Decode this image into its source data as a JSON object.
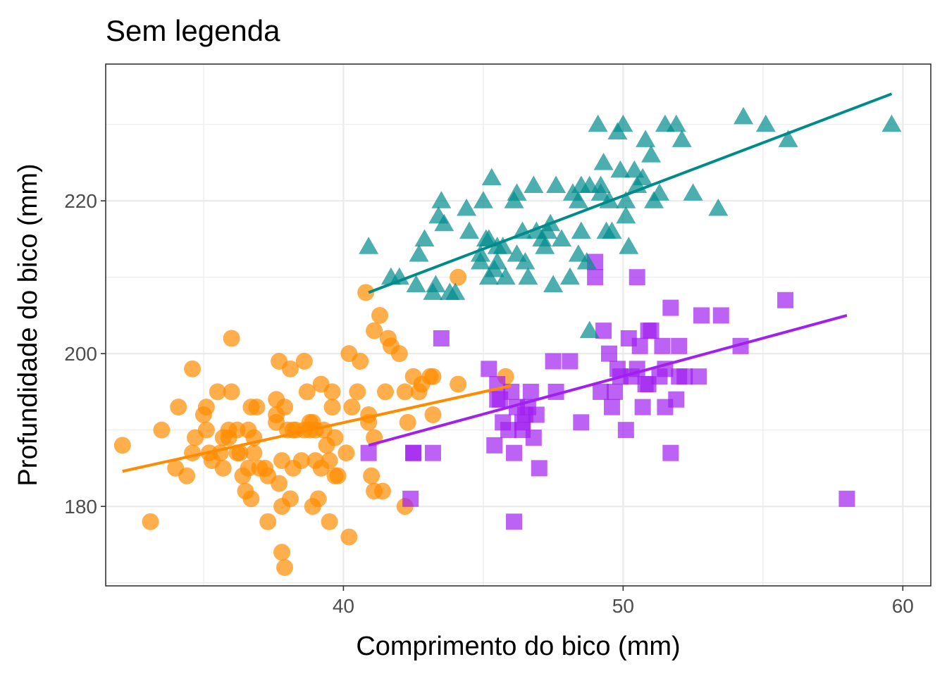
{
  "chart_data": {
    "type": "scatter",
    "title": "Sem legenda",
    "xlabel": "Comprimento do bico (mm)",
    "ylabel": "Profundidade do bico (mm)",
    "xlim": [
      31.5,
      61.0
    ],
    "ylim": [
      169.6,
      237.9
    ],
    "x_ticks": [
      40,
      50,
      60
    ],
    "y_ticks": [
      180,
      200,
      220
    ],
    "grid": true,
    "legend": "none",
    "colors": {
      "orange": "#FF8C00",
      "purple": "#A020F0",
      "teal": "#008B8B",
      "grid": "#EBEBEB",
      "panel_border": "#333333"
    },
    "series": [
      {
        "marker": "circle",
        "color": "#FF8C00",
        "points": [
          [
            32.1,
            188
          ],
          [
            33.1,
            178
          ],
          [
            33.5,
            190
          ],
          [
            34.0,
            185
          ],
          [
            34.1,
            193
          ],
          [
            34.4,
            184
          ],
          [
            34.6,
            187
          ],
          [
            34.6,
            198
          ],
          [
            34.7,
            189
          ],
          [
            35.0,
            192
          ],
          [
            35.1,
            193
          ],
          [
            35.1,
            190
          ],
          [
            35.2,
            187
          ],
          [
            35.3,
            186
          ],
          [
            35.5,
            195
          ],
          [
            35.6,
            187
          ],
          [
            35.7,
            189
          ],
          [
            35.7,
            185
          ],
          [
            35.9,
            190
          ],
          [
            35.9,
            189
          ],
          [
            36.0,
            195
          ],
          [
            36.2,
            187
          ],
          [
            36.0,
            202
          ],
          [
            36.2,
            190
          ],
          [
            36.3,
            187
          ],
          [
            36.4,
            184
          ],
          [
            36.5,
            182
          ],
          [
            36.6,
            185
          ],
          [
            36.6,
            190
          ],
          [
            36.7,
            193
          ],
          [
            36.7,
            181
          ],
          [
            36.8,
            187
          ],
          [
            36.9,
            193
          ],
          [
            37.0,
            185
          ],
          [
            37.2,
            185
          ],
          [
            37.3,
            184
          ],
          [
            37.3,
            178
          ],
          [
            37.6,
            194
          ],
          [
            37.6,
            192
          ],
          [
            37.6,
            191
          ],
          [
            37.7,
            183
          ],
          [
            37.7,
            199
          ],
          [
            37.8,
            180
          ],
          [
            37.8,
            174
          ],
          [
            37.8,
            186
          ],
          [
            37.9,
            193
          ],
          [
            37.9,
            172
          ],
          [
            38.0,
            190
          ],
          [
            38.1,
            198
          ],
          [
            38.1,
            181
          ],
          [
            38.2,
            185
          ],
          [
            38.3,
            190
          ],
          [
            38.5,
            186
          ],
          [
            38.6,
            190
          ],
          [
            38.6,
            199
          ],
          [
            38.7,
            195
          ],
          [
            38.8,
            191
          ],
          [
            38.8,
            190
          ],
          [
            38.9,
            180
          ],
          [
            39.0,
            190
          ],
          [
            39.1,
            181
          ],
          [
            39.2,
            185
          ],
          [
            39.2,
            196
          ],
          [
            39.3,
            190
          ],
          [
            39.5,
            178
          ],
          [
            39.5,
            186
          ],
          [
            39.6,
            193
          ],
          [
            39.6,
            195
          ],
          [
            39.7,
            184
          ],
          [
            39.8,
            184
          ],
          [
            40.2,
            176
          ],
          [
            40.2,
            200
          ],
          [
            40.3,
            193
          ],
          [
            40.5,
            195
          ],
          [
            40.6,
            199
          ],
          [
            40.8,
            208
          ],
          [
            41.0,
            184
          ],
          [
            41.1,
            203
          ],
          [
            41.1,
            182
          ],
          [
            41.3,
            205
          ],
          [
            41.4,
            182
          ],
          [
            41.5,
            195
          ],
          [
            41.6,
            202
          ],
          [
            41.7,
            201
          ],
          [
            42.0,
            200
          ],
          [
            42.2,
            195
          ],
          [
            42.2,
            180
          ],
          [
            42.3,
            191
          ],
          [
            42.5,
            197
          ],
          [
            42.7,
            195
          ],
          [
            42.8,
            196
          ],
          [
            43.1,
            197
          ],
          [
            43.2,
            197
          ],
          [
            43.2,
            192
          ],
          [
            44.1,
            196
          ],
          [
            44.1,
            210
          ],
          [
            45.8,
            197
          ],
          [
            39.4,
            188
          ],
          [
            38.2,
            190
          ],
          [
            36.8,
            189
          ],
          [
            40.9,
            191
          ],
          [
            40.1,
            187
          ],
          [
            39.7,
            189
          ],
          [
            41.1,
            189
          ],
          [
            40.9,
            192
          ],
          [
            38.9,
            191
          ],
          [
            39.0,
            186
          ]
        ]
      },
      {
        "marker": "square",
        "color": "#A020F0",
        "points": [
          [
            40.9,
            187
          ],
          [
            42.4,
            181
          ],
          [
            42.5,
            187
          ],
          [
            42.5,
            187
          ],
          [
            43.2,
            187
          ],
          [
            43.5,
            202
          ],
          [
            45.2,
            198
          ],
          [
            45.4,
            188
          ],
          [
            45.5,
            196
          ],
          [
            45.6,
            194
          ],
          [
            45.7,
            191
          ],
          [
            45.9,
            190
          ],
          [
            46.0,
            195
          ],
          [
            46.1,
            178
          ],
          [
            46.1,
            187
          ],
          [
            46.2,
            193
          ],
          [
            46.4,
            190
          ],
          [
            46.5,
            192
          ],
          [
            46.6,
            193
          ],
          [
            46.7,
            195
          ],
          [
            46.8,
            189
          ],
          [
            46.9,
            192
          ],
          [
            47.0,
            185
          ],
          [
            47.5,
            199
          ],
          [
            47.6,
            195
          ],
          [
            48.1,
            199
          ],
          [
            48.5,
            191
          ],
          [
            49.0,
            210
          ],
          [
            49.2,
            195
          ],
          [
            49.3,
            203
          ],
          [
            49.5,
            200
          ],
          [
            49.6,
            193
          ],
          [
            49.7,
            195
          ],
          [
            49.8,
            198
          ],
          [
            49.9,
            197
          ],
          [
            50.1,
            190
          ],
          [
            50.2,
            202
          ],
          [
            50.3,
            197
          ],
          [
            50.5,
            198
          ],
          [
            50.6,
            201
          ],
          [
            50.7,
            193
          ],
          [
            50.8,
            196
          ],
          [
            50.9,
            203
          ],
          [
            51.0,
            203
          ],
          [
            51.3,
            197
          ],
          [
            51.4,
            201
          ],
          [
            51.5,
            193
          ],
          [
            51.7,
            187
          ],
          [
            51.9,
            194
          ],
          [
            52.0,
            197
          ],
          [
            52.2,
            197
          ],
          [
            52.7,
            197
          ],
          [
            53.5,
            205
          ],
          [
            54.2,
            201
          ],
          [
            55.8,
            207
          ],
          [
            58.0,
            181
          ],
          [
            51.5,
            198
          ],
          [
            50.5,
            210
          ],
          [
            51.7,
            206
          ],
          [
            52.0,
            201
          ],
          [
            52.8,
            205
          ],
          [
            49.0,
            212
          ],
          [
            45.5,
            194
          ],
          [
            46.4,
            191
          ],
          [
            50.9,
            196
          ]
        ]
      },
      {
        "marker": "triangle",
        "color": "#008B8B",
        "points": [
          [
            40.9,
            214
          ],
          [
            41.7,
            210
          ],
          [
            42.0,
            210
          ],
          [
            42.6,
            209
          ],
          [
            42.7,
            213
          ],
          [
            42.9,
            215
          ],
          [
            43.2,
            208
          ],
          [
            43.3,
            209
          ],
          [
            43.4,
            218
          ],
          [
            43.5,
            220
          ],
          [
            43.6,
            217
          ],
          [
            43.8,
            208
          ],
          [
            44.0,
            208
          ],
          [
            44.4,
            219
          ],
          [
            44.5,
            216
          ],
          [
            44.9,
            213
          ],
          [
            45.0,
            220
          ],
          [
            45.1,
            215
          ],
          [
            45.2,
            215
          ],
          [
            45.2,
            210
          ],
          [
            45.3,
            223
          ],
          [
            45.4,
            211
          ],
          [
            45.5,
            212
          ],
          [
            45.7,
            214
          ],
          [
            45.8,
            210
          ],
          [
            46.1,
            220
          ],
          [
            46.2,
            221
          ],
          [
            46.4,
            216
          ],
          [
            46.5,
            212
          ],
          [
            46.6,
            210
          ],
          [
            46.8,
            222
          ],
          [
            46.9,
            216
          ],
          [
            47.2,
            214
          ],
          [
            47.3,
            216
          ],
          [
            47.5,
            209
          ],
          [
            47.6,
            222
          ],
          [
            47.8,
            215
          ],
          [
            48.1,
            210
          ],
          [
            48.2,
            221
          ],
          [
            48.4,
            220
          ],
          [
            48.5,
            222
          ],
          [
            48.7,
            212
          ],
          [
            48.8,
            222
          ],
          [
            48.8,
            203
          ],
          [
            49.1,
            230
          ],
          [
            49.2,
            221
          ],
          [
            49.3,
            225
          ],
          [
            49.4,
            216
          ],
          [
            49.5,
            220
          ],
          [
            49.6,
            216
          ],
          [
            49.8,
            229
          ],
          [
            49.9,
            224
          ],
          [
            50.0,
            230
          ],
          [
            50.1,
            218
          ],
          [
            50.2,
            214
          ],
          [
            50.4,
            224
          ],
          [
            50.5,
            222
          ],
          [
            50.7,
            223
          ],
          [
            50.8,
            228
          ],
          [
            51.0,
            226
          ],
          [
            51.1,
            220
          ],
          [
            51.3,
            221
          ],
          [
            51.5,
            230
          ],
          [
            51.9,
            230
          ],
          [
            52.1,
            228
          ],
          [
            52.5,
            221
          ],
          [
            53.4,
            219
          ],
          [
            54.3,
            231
          ],
          [
            55.1,
            230
          ],
          [
            55.9,
            228
          ],
          [
            59.6,
            230
          ],
          [
            48.4,
            213
          ],
          [
            47.4,
            217
          ],
          [
            50.1,
            220
          ],
          [
            45.5,
            214
          ],
          [
            46.2,
            213
          ],
          [
            49.2,
            222
          ],
          [
            47.1,
            215
          ],
          [
            44.9,
            212
          ],
          [
            48.5,
            216
          ]
        ]
      }
    ],
    "fit_lines": [
      {
        "color": "#FF8C00",
        "x": [
          32.1,
          46.0
        ],
        "y": [
          184.6,
          195.8
        ]
      },
      {
        "color": "#A020F0",
        "x": [
          40.9,
          58.0
        ],
        "y": [
          188.0,
          205.0
        ]
      },
      {
        "color": "#008B8B",
        "x": [
          40.9,
          59.6
        ],
        "y": [
          208.0,
          234.0
        ]
      }
    ]
  }
}
